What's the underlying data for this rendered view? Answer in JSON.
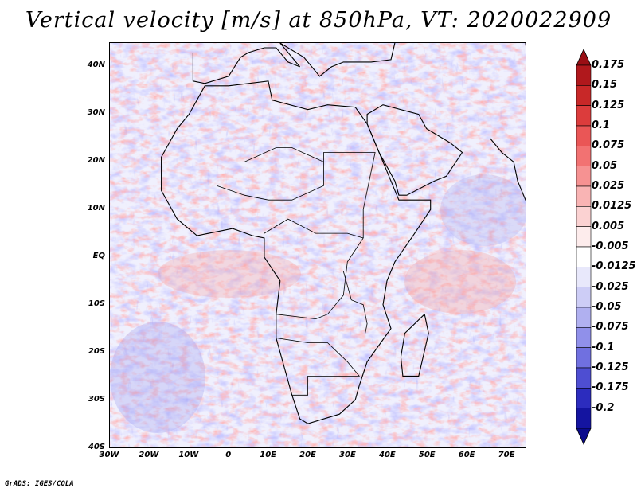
{
  "title": "Vertical velocity [m/s] at 850hPa, VT: 2020022909",
  "footer": "GrADS: IGES/COLA",
  "map": {
    "projection": "lat-lon",
    "lon_range": [
      -30,
      75
    ],
    "lat_range": [
      -40,
      45
    ],
    "lat_ticks": [
      {
        "value": 40,
        "label": "40N"
      },
      {
        "value": 30,
        "label": "30N"
      },
      {
        "value": 20,
        "label": "20N"
      },
      {
        "value": 10,
        "label": "10N"
      },
      {
        "value": 0,
        "label": "EQ"
      },
      {
        "value": -10,
        "label": "10S"
      },
      {
        "value": -20,
        "label": "20S"
      },
      {
        "value": -30,
        "label": "30S"
      },
      {
        "value": -40,
        "label": "40S"
      }
    ],
    "lon_ticks": [
      {
        "value": -30,
        "label": "30W"
      },
      {
        "value": -20,
        "label": "20W"
      },
      {
        "value": -10,
        "label": "10W"
      },
      {
        "value": 0,
        "label": "0"
      },
      {
        "value": 10,
        "label": "10E"
      },
      {
        "value": 20,
        "label": "20E"
      },
      {
        "value": 30,
        "label": "30E"
      },
      {
        "value": 40,
        "label": "40E"
      },
      {
        "value": 50,
        "label": "50E"
      },
      {
        "value": 60,
        "label": "60E"
      },
      {
        "value": 70,
        "label": "70E"
      }
    ]
  },
  "colorbar": {
    "levels": [
      {
        "label": "0.175",
        "color": "#b0181c"
      },
      {
        "label": "0.15",
        "color": "#c82828"
      },
      {
        "label": "0.125",
        "color": "#dc3c3c"
      },
      {
        "label": "0.1",
        "color": "#ea5656"
      },
      {
        "label": "0.075",
        "color": "#f27272"
      },
      {
        "label": "0.05",
        "color": "#f69292"
      },
      {
        "label": "0.025",
        "color": "#f9b4b4"
      },
      {
        "label": "0.0125",
        "color": "#fbd2d2"
      },
      {
        "label": "0.005",
        "color": "#fdecec"
      },
      {
        "label": "-0.005",
        "color": "#ffffff"
      },
      {
        "label": "-0.0125",
        "color": "#e8e8fb"
      },
      {
        "label": "-0.025",
        "color": "#cdcdf6"
      },
      {
        "label": "-0.05",
        "color": "#b0b0f0"
      },
      {
        "label": "-0.075",
        "color": "#9090ea"
      },
      {
        "label": "-0.1",
        "color": "#7070e0"
      },
      {
        "label": "-0.125",
        "color": "#4e4ed2"
      },
      {
        "label": "-0.175",
        "color": "#2c2cbe"
      },
      {
        "label": "-0.2",
        "color": "#1414a0"
      }
    ],
    "top_arrow_color": "#9a0e14",
    "bottom_arrow_color": "#0a0a8c"
  }
}
